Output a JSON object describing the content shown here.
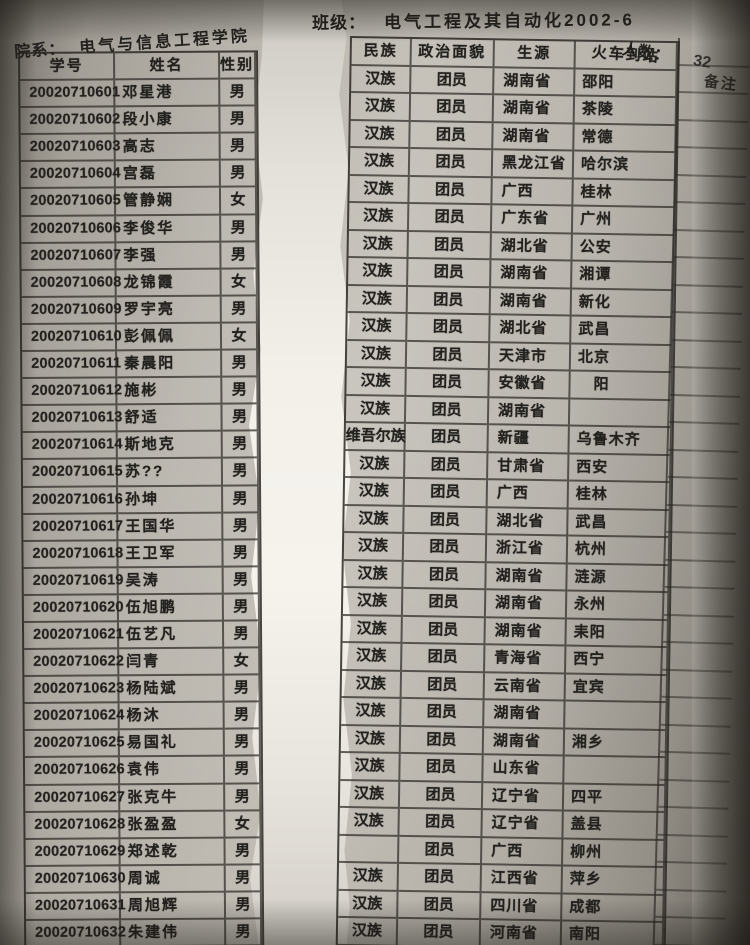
{
  "page": {
    "department_label": "院系：",
    "department": "电气与信息工程学院",
    "class_label": "班级：",
    "class_name": "电气工程及其自动化2002-6",
    "count_label": "人数：",
    "count": "32"
  },
  "paper_color": "#c3bfb7",
  "line_color": "#2d2a26",
  "table": {
    "headers": {
      "id": "学号",
      "name": "姓名",
      "gender": "性别",
      "ethnicity": "民族",
      "political": "政治面貌",
      "origin": "生源",
      "station": "火车到站",
      "remarks": "备注"
    },
    "rows": [
      {
        "id": "20020710601",
        "name": "邓星港",
        "gender": "男",
        "ethnicity": "汉族",
        "political": "团员",
        "origin": "湖南省",
        "station": "邵阳",
        "remarks": ""
      },
      {
        "id": "20020710602",
        "name": "段小康",
        "gender": "男",
        "ethnicity": "汉族",
        "political": "团员",
        "origin": "湖南省",
        "station": "茶陵",
        "remarks": ""
      },
      {
        "id": "20020710603",
        "name": "高志",
        "gender": "男",
        "ethnicity": "汉族",
        "political": "团员",
        "origin": "湖南省",
        "station": "常德",
        "remarks": ""
      },
      {
        "id": "20020710604",
        "name": "宫磊",
        "gender": "男",
        "ethnicity": "汉族",
        "political": "团员",
        "origin": "黑龙江省",
        "station": "哈尔滨",
        "remarks": ""
      },
      {
        "id": "20020710605",
        "name": "管静娴",
        "gender": "女",
        "ethnicity": "汉族",
        "political": "团员",
        "origin": "广西",
        "station": "桂林",
        "remarks": ""
      },
      {
        "id": "20020710606",
        "name": "李俊华",
        "gender": "男",
        "ethnicity": "汉族",
        "political": "团员",
        "origin": "广东省",
        "station": "广州",
        "remarks": ""
      },
      {
        "id": "20020710607",
        "name": "李强",
        "gender": "男",
        "ethnicity": "汉族",
        "political": "团员",
        "origin": "湖北省",
        "station": "公安",
        "remarks": ""
      },
      {
        "id": "20020710608",
        "name": "龙锦霞",
        "gender": "女",
        "ethnicity": "汉族",
        "political": "团员",
        "origin": "湖南省",
        "station": "湘谭",
        "remarks": ""
      },
      {
        "id": "20020710609",
        "name": "罗宇亮",
        "gender": "男",
        "ethnicity": "汉族",
        "political": "团员",
        "origin": "湖南省",
        "station": "新化",
        "remarks": ""
      },
      {
        "id": "20020710610",
        "name": "彭佩佩",
        "gender": "女",
        "ethnicity": "汉族",
        "political": "团员",
        "origin": "湖北省",
        "station": "武昌",
        "remarks": ""
      },
      {
        "id": "20020710611",
        "name": "秦晨阳",
        "gender": "男",
        "ethnicity": "汉族",
        "political": "团员",
        "origin": "天津市",
        "station": "北京",
        "remarks": ""
      },
      {
        "id": "20020710612",
        "name": "施彬",
        "gender": "男",
        "ethnicity": "汉族",
        "political": "团员",
        "origin": "安徽省",
        "station": "　阳",
        "remarks": ""
      },
      {
        "id": "20020710613",
        "name": "舒适",
        "gender": "男",
        "ethnicity": "汉族",
        "political": "团员",
        "origin": "湖南省",
        "station": "",
        "remarks": ""
      },
      {
        "id": "20020710614",
        "name": "斯地克",
        "gender": "男",
        "ethnicity": "维吾尔族",
        "political": "团员",
        "origin": "新疆",
        "station": "乌鲁木齐",
        "remarks": ""
      },
      {
        "id": "20020710615",
        "name": "苏??",
        "gender": "男",
        "ethnicity": "汉族",
        "political": "团员",
        "origin": "甘肃省",
        "station": "西安",
        "remarks": ""
      },
      {
        "id": "20020710616",
        "name": "孙坤",
        "gender": "男",
        "ethnicity": "汉族",
        "political": "团员",
        "origin": "广西",
        "station": "桂林",
        "remarks": ""
      },
      {
        "id": "20020710617",
        "name": "王国华",
        "gender": "男",
        "ethnicity": "汉族",
        "political": "团员",
        "origin": "湖北省",
        "station": "武昌",
        "remarks": ""
      },
      {
        "id": "20020710618",
        "name": "王卫军",
        "gender": "男",
        "ethnicity": "汉族",
        "political": "团员",
        "origin": "浙江省",
        "station": "杭州",
        "remarks": ""
      },
      {
        "id": "20020710619",
        "name": "吴涛",
        "gender": "男",
        "ethnicity": "汉族",
        "political": "团员",
        "origin": "湖南省",
        "station": "涟源",
        "remarks": ""
      },
      {
        "id": "20020710620",
        "name": "伍旭鹏",
        "gender": "男",
        "ethnicity": "汉族",
        "political": "团员",
        "origin": "湖南省",
        "station": "永州",
        "remarks": ""
      },
      {
        "id": "20020710621",
        "name": "伍艺凡",
        "gender": "男",
        "ethnicity": "汉族",
        "political": "团员",
        "origin": "湖南省",
        "station": "耒阳",
        "remarks": ""
      },
      {
        "id": "20020710622",
        "name": "闫青",
        "gender": "女",
        "ethnicity": "汉族",
        "political": "团员",
        "origin": "青海省",
        "station": "西宁",
        "remarks": ""
      },
      {
        "id": "20020710623",
        "name": "杨陆斌",
        "gender": "男",
        "ethnicity": "汉族",
        "political": "团员",
        "origin": "云南省",
        "station": "宜宾",
        "remarks": ""
      },
      {
        "id": "20020710624",
        "name": "杨沐",
        "gender": "男",
        "ethnicity": "汉族",
        "political": "团员",
        "origin": "湖南省",
        "station": "",
        "remarks": ""
      },
      {
        "id": "20020710625",
        "name": "易国礼",
        "gender": "男",
        "ethnicity": "汉族",
        "political": "团员",
        "origin": "湖南省",
        "station": "湘乡",
        "remarks": ""
      },
      {
        "id": "20020710626",
        "name": "袁伟",
        "gender": "男",
        "ethnicity": "汉族",
        "political": "团员",
        "origin": "山东省",
        "station": "",
        "remarks": ""
      },
      {
        "id": "20020710627",
        "name": "张克牛",
        "gender": "男",
        "ethnicity": "汉族",
        "political": "团员",
        "origin": "辽宁省",
        "station": "四平",
        "remarks": ""
      },
      {
        "id": "20020710628",
        "name": "张盈盈",
        "gender": "女",
        "ethnicity": "汉族",
        "political": "团员",
        "origin": "辽宁省",
        "station": "盖县",
        "remarks": ""
      },
      {
        "id": "20020710629",
        "name": "郑述乾",
        "gender": "男",
        "ethnicity": "",
        "political": "团员",
        "origin": "广西",
        "station": "柳州",
        "remarks": ""
      },
      {
        "id": "20020710630",
        "name": "周诚",
        "gender": "男",
        "ethnicity": "汉族",
        "political": "团员",
        "origin": "江西省",
        "station": "萍乡",
        "remarks": ""
      },
      {
        "id": "20020710631",
        "name": "周旭辉",
        "gender": "男",
        "ethnicity": "汉族",
        "political": "团员",
        "origin": "四川省",
        "station": "成都",
        "remarks": ""
      },
      {
        "id": "20020710632",
        "name": "朱建伟",
        "gender": "男",
        "ethnicity": "汉族",
        "political": "团员",
        "origin": "河南省",
        "station": "南阳",
        "remarks": ""
      }
    ]
  }
}
